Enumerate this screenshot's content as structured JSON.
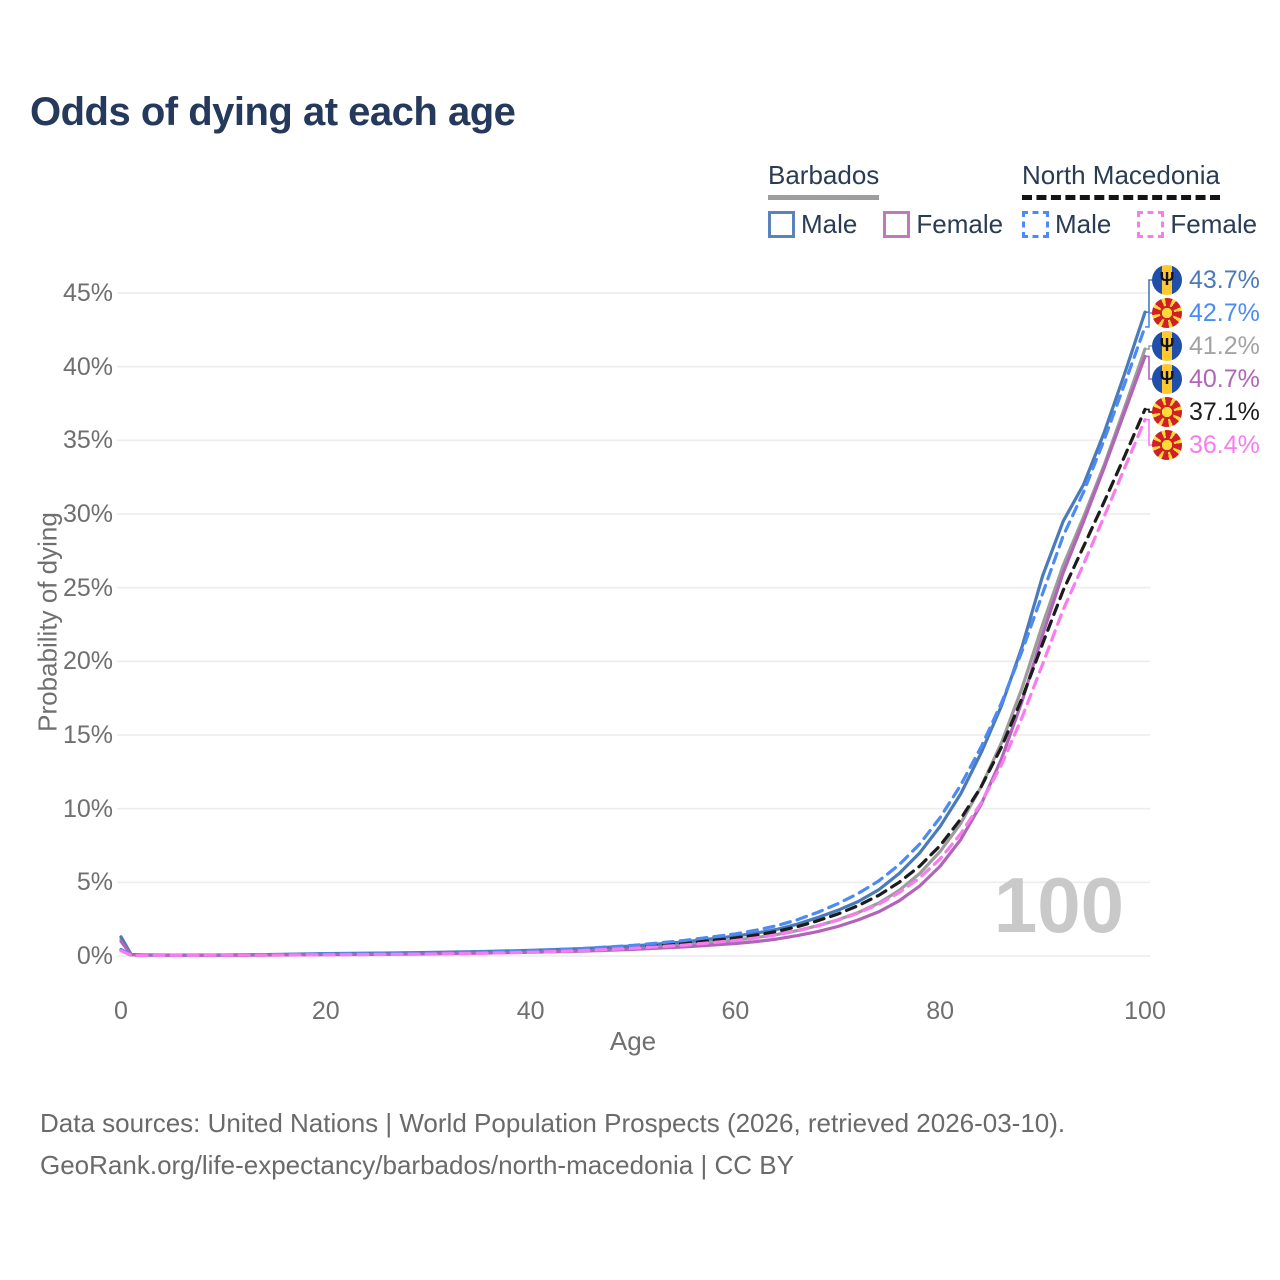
{
  "title": "Odds of dying at each age",
  "watermark": "100",
  "legend": {
    "groups": [
      {
        "country": "Barbados",
        "line_style": "solid",
        "underline_color": "#9e9e9e",
        "items": [
          {
            "label": "Male",
            "color": "#4b7ab9"
          },
          {
            "label": "Female",
            "color": "#b164b8"
          }
        ]
      },
      {
        "country": "North Macedonia",
        "line_style": "dashed",
        "underline_color": "#141414",
        "items": [
          {
            "label": "Male",
            "color": "#4c8bf5"
          },
          {
            "label": "Female",
            "color": "#f87cef"
          }
        ]
      }
    ]
  },
  "chart_data": {
    "type": "line",
    "title": "Odds of dying at each age",
    "xlabel": "Age",
    "ylabel": "Probability of dying",
    "xlim": [
      0,
      100
    ],
    "ylim": [
      0,
      45
    ],
    "x_ticks": [
      0,
      20,
      40,
      60,
      80,
      100
    ],
    "y_ticks": [
      0,
      5,
      10,
      15,
      20,
      25,
      30,
      35,
      40,
      45
    ],
    "y_tick_suffix": "%",
    "grid": "horizontal",
    "legend_position": "top-right",
    "x": [
      0,
      1,
      2,
      5,
      10,
      15,
      20,
      25,
      30,
      35,
      40,
      45,
      50,
      55,
      60,
      62,
      64,
      66,
      68,
      70,
      72,
      74,
      76,
      78,
      80,
      82,
      84,
      86,
      88,
      90,
      92,
      94,
      96,
      98,
      100
    ],
    "series": [
      {
        "name": "Barbados (both sexes)",
        "country": "Barbados",
        "sex": "Both",
        "color": "#9c9c9c",
        "dash": "solid",
        "flag": "barbados",
        "end_label": "41.2%",
        "end_label_color": "#a3a3a3",
        "values": [
          1.15,
          0.09,
          0.07,
          0.055,
          0.06,
          0.09,
          0.13,
          0.16,
          0.2,
          0.25,
          0.32,
          0.42,
          0.57,
          0.78,
          1.08,
          1.25,
          1.45,
          1.72,
          2.05,
          2.45,
          2.95,
          3.6,
          4.45,
          5.6,
          7.1,
          9.0,
          11.5,
          14.5,
          18.2,
          22.5,
          26.5,
          29.8,
          33.3,
          37.2,
          41.2
        ]
      },
      {
        "name": "Barbados Male",
        "country": "Barbados",
        "sex": "Male",
        "color": "#4b7ab9",
        "dash": "solid",
        "flag": "barbados",
        "end_label": "43.7%",
        "end_label_color": "#4b7ab9",
        "values": [
          1.3,
          0.1,
          0.08,
          0.06,
          0.07,
          0.1,
          0.16,
          0.2,
          0.24,
          0.3,
          0.38,
          0.5,
          0.68,
          0.95,
          1.35,
          1.55,
          1.8,
          2.15,
          2.6,
          3.1,
          3.7,
          4.5,
          5.6,
          7.0,
          8.8,
          11.0,
          13.8,
          17.0,
          21.0,
          25.8,
          29.5,
          32.0,
          35.5,
          39.5,
          43.7
        ]
      },
      {
        "name": "Barbados Female",
        "country": "Barbados",
        "sex": "Female",
        "color": "#b164b8",
        "dash": "solid",
        "flag": "barbados",
        "end_label": "40.7%",
        "end_label_color": "#b164b8",
        "values": [
          1.0,
          0.08,
          0.06,
          0.05,
          0.05,
          0.07,
          0.09,
          0.11,
          0.14,
          0.19,
          0.25,
          0.33,
          0.45,
          0.62,
          0.85,
          0.98,
          1.15,
          1.38,
          1.65,
          2.0,
          2.45,
          3.0,
          3.75,
          4.75,
          6.1,
          7.9,
          10.3,
          13.4,
          17.3,
          21.8,
          26.0,
          29.5,
          33.1,
          36.9,
          40.7
        ]
      },
      {
        "name": "North Macedonia (both sexes)",
        "country": "North Macedonia",
        "sex": "Both",
        "color": "#1c1c1c",
        "dash": "dashed",
        "flag": "north-macedonia",
        "end_label": "37.1%",
        "end_label_color": "#1c1c1c",
        "values": [
          0.4,
          0.05,
          0.045,
          0.045,
          0.05,
          0.075,
          0.11,
          0.14,
          0.17,
          0.22,
          0.3,
          0.42,
          0.6,
          0.85,
          1.22,
          1.42,
          1.66,
          1.98,
          2.38,
          2.85,
          3.42,
          4.12,
          5.0,
          6.1,
          7.5,
          9.3,
          11.5,
          14.2,
          17.5,
          21.2,
          24.8,
          27.8,
          30.8,
          33.9,
          37.1
        ]
      },
      {
        "name": "North Macedonia Male",
        "country": "North Macedonia",
        "sex": "Male",
        "color": "#4c8bf5",
        "dash": "dashed",
        "flag": "north-macedonia",
        "end_label": "42.7%",
        "end_label_color": "#4c8bf5",
        "values": [
          0.45,
          0.06,
          0.05,
          0.05,
          0.06,
          0.09,
          0.14,
          0.17,
          0.2,
          0.26,
          0.35,
          0.5,
          0.72,
          1.05,
          1.5,
          1.75,
          2.05,
          2.45,
          2.95,
          3.55,
          4.25,
          5.1,
          6.2,
          7.6,
          9.4,
          11.6,
          14.2,
          17.2,
          20.7,
          24.6,
          28.5,
          31.5,
          35.0,
          38.8,
          42.7
        ]
      },
      {
        "name": "North Macedonia Female",
        "country": "North Macedonia",
        "sex": "Female",
        "color": "#f87cef",
        "dash": "dashed",
        "flag": "north-macedonia",
        "end_label": "36.4%",
        "end_label_color": "#f87cef",
        "values": [
          0.35,
          0.045,
          0.04,
          0.04,
          0.045,
          0.06,
          0.08,
          0.1,
          0.13,
          0.18,
          0.25,
          0.36,
          0.52,
          0.74,
          1.05,
          1.22,
          1.43,
          1.7,
          2.03,
          2.43,
          2.92,
          3.52,
          4.3,
          5.3,
          6.6,
          8.3,
          10.4,
          13.0,
          16.2,
          19.8,
          23.5,
          26.6,
          29.8,
          33.1,
          36.4
        ]
      }
    ]
  },
  "footer": {
    "line1": "Data sources: United Nations | World Population Prospects (2026, retrieved 2026-03-10).",
    "line2": "GeoRank.org/life-expectancy/barbados/north-macedonia | CC BY"
  }
}
